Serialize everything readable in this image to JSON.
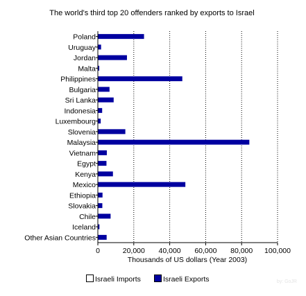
{
  "chart_data": {
    "type": "bar",
    "orientation": "horizontal",
    "title": "The world's third top 20 offenders ranked by exports to Israel",
    "xlabel": "Thousands of US dollars (Year 2003)",
    "ylabel": "",
    "xlim": [
      0,
      100000
    ],
    "x_ticks": [
      "0",
      "20,000",
      "40,000",
      "60,000",
      "80,000",
      "100,000"
    ],
    "grid": "vertical dotted",
    "legend_position": "bottom",
    "categories": [
      "Poland",
      "Uruguay",
      "Jordan",
      "Malta",
      "Philippines",
      "Bulgaria",
      "Sri Lanka",
      "Indonesia",
      "Luxembourg",
      "Slovenia",
      "Malaysia",
      "Vietnam",
      "Egypt",
      "Kenya",
      "Mexico",
      "Ethiopia",
      "Slovakia",
      "Chile",
      "Iceland",
      "Other Asian Countries"
    ],
    "series": [
      {
        "name": "Israeli Imports",
        "color": "#ffffff",
        "values": [
          0,
          0,
          0,
          0,
          0,
          0,
          0,
          0,
          0,
          0,
          0,
          0,
          0,
          0,
          0,
          0,
          0,
          0,
          0,
          0
        ]
      },
      {
        "name": "Israeli Exports",
        "color": "#0000a0",
        "values": [
          25700,
          1800,
          16200,
          800,
          47000,
          6500,
          8800,
          2400,
          1600,
          15300,
          84300,
          5000,
          4800,
          8400,
          48700,
          2600,
          2500,
          7100,
          900,
          4900
        ]
      }
    ]
  },
  "watermark": "by: GoJR"
}
